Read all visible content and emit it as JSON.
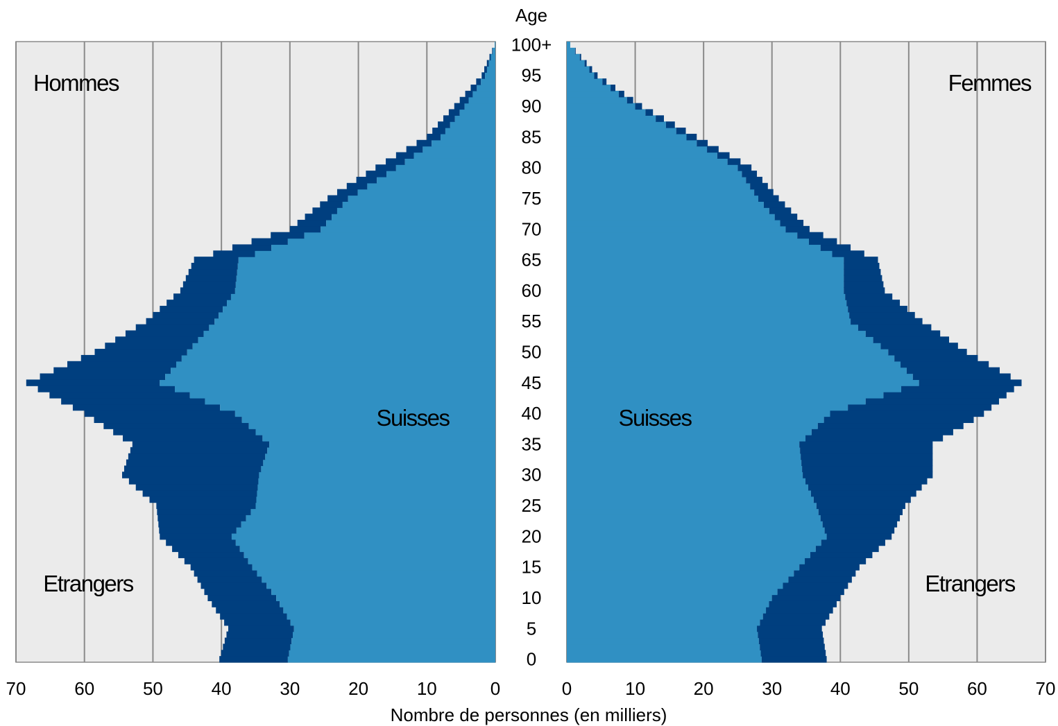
{
  "chart_data": {
    "type": "bar",
    "subtype": "population-pyramid",
    "title": "",
    "xlabel": "Nombre de personnes (en milliers)",
    "ylabel": "Age",
    "xlim": [
      0,
      70
    ],
    "x_ticks": [
      0,
      10,
      20,
      30,
      40,
      50,
      60,
      70
    ],
    "y_ticks": [
      {
        "age": 0,
        "label": "0"
      },
      {
        "age": 5,
        "label": "5"
      },
      {
        "age": 10,
        "label": "10"
      },
      {
        "age": 15,
        "label": "15"
      },
      {
        "age": 20,
        "label": "20"
      },
      {
        "age": 25,
        "label": "25"
      },
      {
        "age": 30,
        "label": "30"
      },
      {
        "age": 35,
        "label": "35"
      },
      {
        "age": 40,
        "label": "40"
      },
      {
        "age": 45,
        "label": "45"
      },
      {
        "age": 50,
        "label": "50"
      },
      {
        "age": 55,
        "label": "55"
      },
      {
        "age": 60,
        "label": "60"
      },
      {
        "age": 65,
        "label": "65"
      },
      {
        "age": 70,
        "label": "70"
      },
      {
        "age": 75,
        "label": "75"
      },
      {
        "age": 80,
        "label": "80"
      },
      {
        "age": 85,
        "label": "85"
      },
      {
        "age": 90,
        "label": "90"
      },
      {
        "age": 95,
        "label": "95"
      },
      {
        "age": 100,
        "label": "100+"
      }
    ],
    "stacked": true,
    "grid": true,
    "background": "#ebebeb",
    "colors": {
      "suisses": "#3090c3",
      "etrangers": "#003f7f",
      "grid": "#8a8a8a"
    },
    "panel_labels": {
      "left": "Hommes",
      "right": "Femmes"
    },
    "series_labels": {
      "suisses": "Suisses",
      "etrangers": "Etrangers"
    },
    "age_keypoints": [
      0,
      5,
      10,
      15,
      20,
      25,
      30,
      35,
      40,
      45,
      50,
      55,
      60,
      65,
      70,
      75,
      80,
      85,
      90,
      95,
      100
    ],
    "men": {
      "suisses": [
        30.3,
        29.4,
        32,
        35.5,
        38.5,
        35,
        34.5,
        33,
        38,
        49,
        45,
        41,
        38,
        37.5,
        25.5,
        21.5,
        14.5,
        8,
        4.5,
        1.5,
        0.1
      ],
      "etrangers": [
        10,
        9.6,
        10,
        9,
        10.5,
        14.5,
        20,
        20,
        22,
        19.5,
        13.5,
        10,
        8,
        6.5,
        4.5,
        3,
        3,
        2,
        1.5,
        0.5,
        0
      ]
    },
    "women": {
      "suisses": [
        28.5,
        27.8,
        30,
        34,
        38,
        36.5,
        34.5,
        34,
        38.5,
        51.5,
        47,
        41.5,
        40.5,
        40.5,
        32,
        28,
        25,
        17.5,
        10,
        4,
        0.5
      ],
      "etrangers": [
        9.5,
        9.5,
        10,
        8.8,
        9.5,
        13,
        19,
        19.5,
        22.5,
        15,
        11.5,
        10.5,
        6,
        5,
        3.5,
        3,
        2,
        1.5,
        1,
        0.5,
        0
      ]
    }
  }
}
